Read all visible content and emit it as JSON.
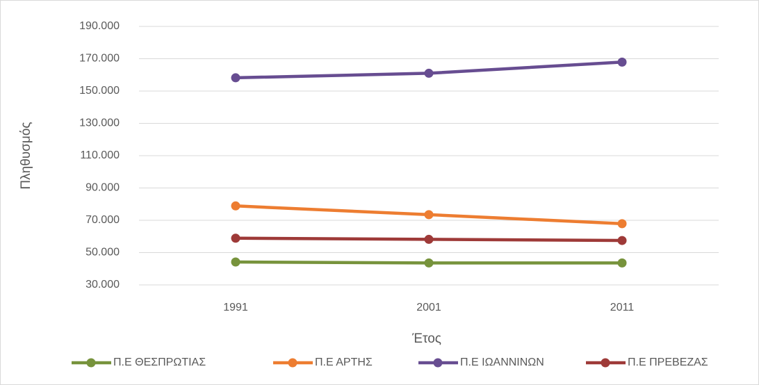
{
  "chart_data": {
    "type": "line",
    "x_label": "Έτος",
    "y_label": "Πληθυσμός",
    "categories": [
      "1991",
      "2001",
      "2011"
    ],
    "series": [
      {
        "name": "Π.Ε ΘΕΣΠΡΩΤΙΑΣ",
        "color": "#77933c",
        "values": [
          44200,
          43600,
          43600
        ]
      },
      {
        "name": "Π.Ε ΑΡΤΗΣ",
        "color": "#ed7d31",
        "values": [
          78900,
          73500,
          67900
        ]
      },
      {
        "name": "Π.Ε ΙΩΑΝΝΙΝΩΝ",
        "color": "#674d91",
        "values": [
          158200,
          161000,
          167900
        ]
      },
      {
        "name": "Π.Ε ΠΡΕΒΕΖΑΣ",
        "color": "#9e3a38",
        "values": [
          58900,
          58200,
          57500
        ]
      }
    ],
    "ylim": [
      30000,
      190000
    ],
    "yticks": [
      {
        "value": 30000,
        "label": "30.000"
      },
      {
        "value": 50000,
        "label": "50.000"
      },
      {
        "value": 70000,
        "label": "70.000"
      },
      {
        "value": 90000,
        "label": "90.000"
      },
      {
        "value": 110000,
        "label": "110.000"
      },
      {
        "value": 130000,
        "label": "130.000"
      },
      {
        "value": 150000,
        "label": "150.000"
      },
      {
        "value": 170000,
        "label": "170.000"
      },
      {
        "value": 190000,
        "label": "190.000"
      }
    ],
    "grid": true,
    "legend": "bottom"
  }
}
